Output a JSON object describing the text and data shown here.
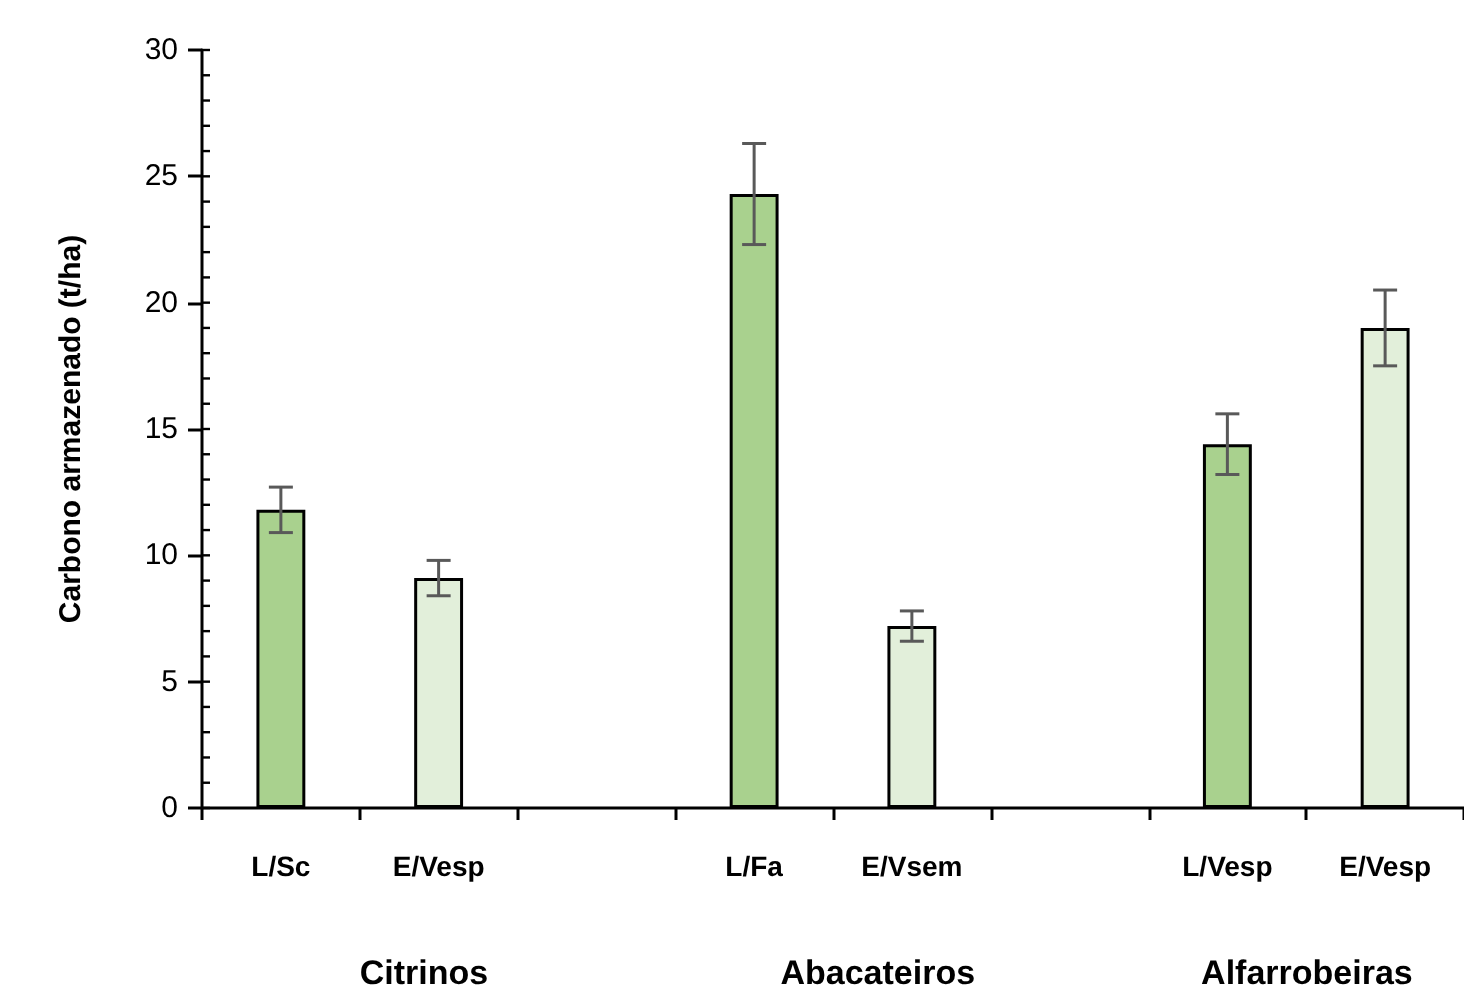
{
  "chart_data": {
    "type": "bar",
    "categories": [
      "L/Sc",
      "E/Vesp",
      null,
      "L/Fa",
      "E/Vsem",
      null,
      "L/Vesp",
      "E/Vesp"
    ],
    "values": [
      11.8,
      9.1,
      null,
      24.3,
      7.2,
      null,
      14.4,
      19.0
    ],
    "errors": [
      0.9,
      0.7,
      null,
      2.0,
      0.6,
      null,
      1.2,
      1.5
    ],
    "colors": [
      "#a9d18e",
      "#e2efda",
      "#ffffff",
      "#a9d18e",
      "#e2efda",
      "#ffffff",
      "#a9d18e",
      "#e2efda"
    ],
    "ylabel": "Carbono armazenado (t/ha)",
    "ylim": [
      0,
      30
    ],
    "yticks": [
      0,
      5,
      10,
      15,
      20,
      25,
      30
    ],
    "annotations": [
      "Citrinos",
      "Abacateiros",
      "Alfarrobeiras"
    ],
    "grid": false
  }
}
